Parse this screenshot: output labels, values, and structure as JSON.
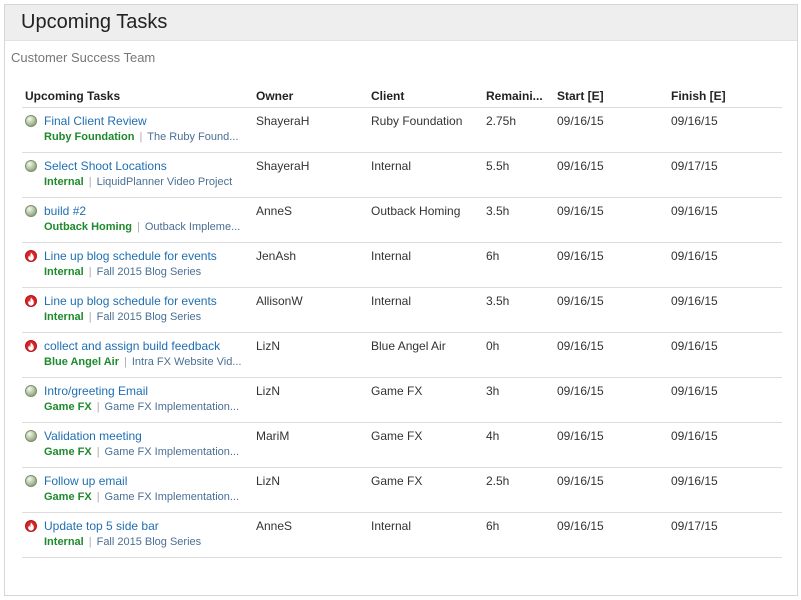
{
  "panel": {
    "title": "Upcoming Tasks",
    "subtitle": "Customer Success Team"
  },
  "columns": {
    "task": "Upcoming Tasks",
    "owner": "Owner",
    "client": "Client",
    "remaining": "Remaini...",
    "start": "Start [E]",
    "finish": "Finish [E]"
  },
  "rows": [
    {
      "status": "on-track",
      "task": "Final Client Review",
      "client_tag": "Ruby Foundation",
      "project": "The Ruby Found...",
      "owner": "ShayeraH",
      "client": "Ruby Foundation",
      "remaining": "2.75h",
      "start": "09/16/15",
      "finish": "09/16/15"
    },
    {
      "status": "on-track",
      "task": "Select Shoot Locations",
      "client_tag": "Internal",
      "project": "LiquidPlanner Video Project",
      "owner": "ShayeraH",
      "client": "Internal",
      "remaining": "5.5h",
      "start": "09/16/15",
      "finish": "09/17/15"
    },
    {
      "status": "on-track",
      "task": "build #2",
      "client_tag": "Outback Homing",
      "project": "Outback Impleme...",
      "owner": "AnneS",
      "client": "Outback Homing",
      "remaining": "3.5h",
      "start": "09/16/15",
      "finish": "09/16/15"
    },
    {
      "status": "late",
      "task": "Line up blog schedule for events",
      "client_tag": "Internal",
      "project": "Fall 2015 Blog Series",
      "owner": "JenAsh",
      "client": "Internal",
      "remaining": "6h",
      "start": "09/16/15",
      "finish": "09/16/15"
    },
    {
      "status": "late",
      "task": "Line up blog schedule for events",
      "client_tag": "Internal",
      "project": "Fall 2015 Blog Series",
      "owner": "AllisonW",
      "client": "Internal",
      "remaining": "3.5h",
      "start": "09/16/15",
      "finish": "09/16/15"
    },
    {
      "status": "late",
      "task": "collect and assign build feedback",
      "client_tag": "Blue Angel Air",
      "project": "Intra FX Website Vid...",
      "owner": "LizN",
      "client": "Blue Angel Air",
      "remaining": "0h",
      "start": "09/16/15",
      "finish": "09/16/15"
    },
    {
      "status": "on-track",
      "task": "Intro/greeting Email",
      "client_tag": "Game FX",
      "project": "Game FX Implementation...",
      "owner": "LizN",
      "client": "Game FX",
      "remaining": "3h",
      "start": "09/16/15",
      "finish": "09/16/15"
    },
    {
      "status": "on-track",
      "task": "Validation meeting",
      "client_tag": "Game FX",
      "project": "Game FX Implementation...",
      "owner": "MariM",
      "client": "Game FX",
      "remaining": "4h",
      "start": "09/16/15",
      "finish": "09/16/15"
    },
    {
      "status": "on-track",
      "task": "Follow up email",
      "client_tag": "Game FX",
      "project": "Game FX Implementation...",
      "owner": "LizN",
      "client": "Game FX",
      "remaining": "2.5h",
      "start": "09/16/15",
      "finish": "09/16/15"
    },
    {
      "status": "late",
      "task": "Update top 5 side bar",
      "client_tag": "Internal",
      "project": "Fall 2015 Blog Series",
      "owner": "AnneS",
      "client": "Internal",
      "remaining": "6h",
      "start": "09/16/15",
      "finish": "09/17/15"
    }
  ],
  "separator": "|",
  "icons": {
    "on_track": "status-on-track-icon",
    "late": "late-flame-icon"
  },
  "colors": {
    "task_link": "#1f6fb2",
    "client_tag": "#1d8a2c",
    "project_link": "#4b6f94",
    "late": "#d8262a"
  }
}
